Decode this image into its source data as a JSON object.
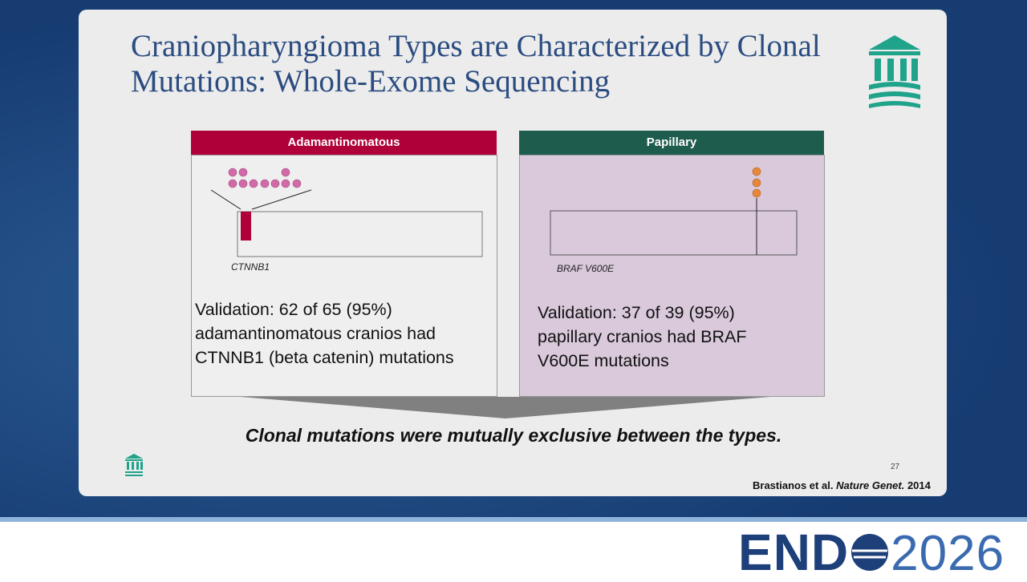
{
  "slide": {
    "title": "Craniopharyngioma Types are Characterized by Clonal Mutations: Whole-Exome Sequencing",
    "panels": [
      {
        "header": "Adamantinomatous",
        "gene": "CTNNB1",
        "validation": "Validation: 62 of 65 (95%) adamantinomatous cranios had CTNNB1 (beta catenin) mutations"
      },
      {
        "header": "Papillary",
        "gene": "BRAF V600E",
        "validation": "Validation: 37 of 39 (95%) papillary cranios had BRAF V600E mutations"
      }
    ],
    "conclusion": "Clonal mutations were mutually exclusive between the types.",
    "page_number": "27",
    "citation": {
      "authors": "Brastianos et al.",
      "journal": "Nature Genet.",
      "year": "2014"
    }
  },
  "footer": {
    "brand": "END",
    "year": "2026"
  }
}
